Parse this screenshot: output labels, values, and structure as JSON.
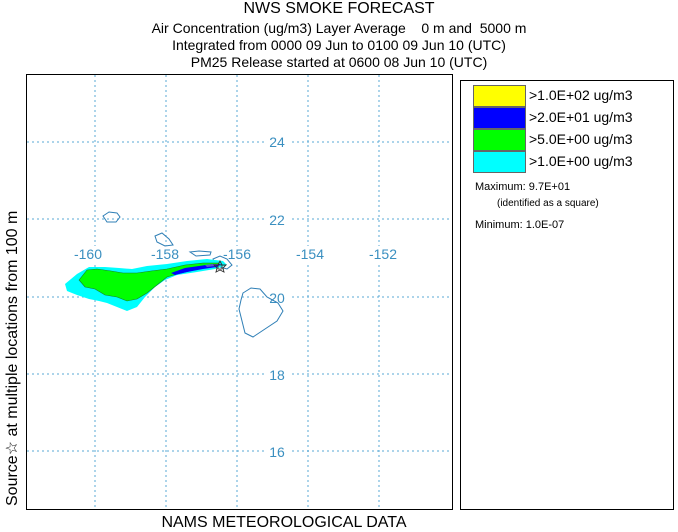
{
  "title": {
    "line1": "NWS SMOKE FORECAST",
    "line2": "Air Concentration (ug/m3) Layer Average    0 m and  5000 m",
    "line3": "Integrated from 0000 09 Jun to 0100 09 Jun 10 (UTC)",
    "line4": "PM25 Release started at 0600 08 Jun 10 (UTC)"
  },
  "side_label": "Source☆ at multiple locations   from   100 m",
  "bottom_label": "NAMS METEOROLOGICAL DATA",
  "map": {
    "longitude_labels": [
      "-160",
      "-158",
      "-156",
      "-154",
      "-152"
    ],
    "latitude_labels": [
      "24",
      "22",
      "20",
      "18",
      "16"
    ],
    "gridline_color": "#5aa9d6",
    "coast_color": "#2f7fb6",
    "source_marker": "star-icon"
  },
  "legend": {
    "levels": [
      {
        "label": ">1.0E+02 ug/m3",
        "color": "#ffff00"
      },
      {
        "label": ">2.0E+01 ug/m3",
        "color": "#0000ff"
      },
      {
        "label": ">5.0E+00 ug/m3",
        "color": "#00ff00"
      },
      {
        "label": ">1.0E+00 ug/m3",
        "color": "#00ffff"
      }
    ],
    "maximum": "Maximum: 9.7E+01",
    "maximum_note": "(identified as a square)",
    "minimum": "Minimum: 1.0E-07"
  }
}
